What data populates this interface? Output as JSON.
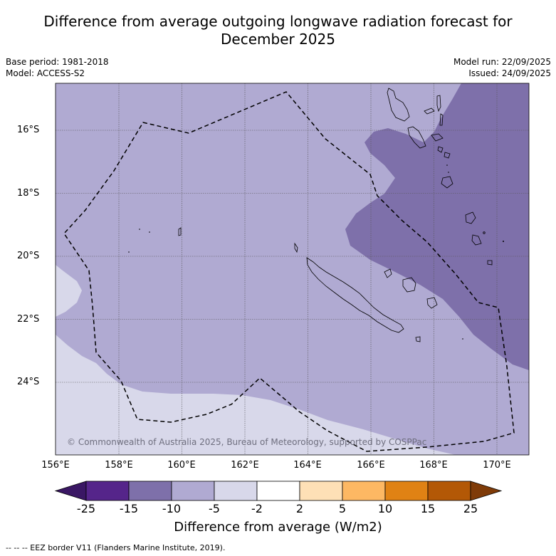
{
  "title": {
    "line1": "Difference from average outgoing longwave radiation forecast for",
    "line2": "December 2025"
  },
  "meta": {
    "base_period": "Base period: 1981-2018",
    "model": "Model: ACCESS-S2",
    "model_run": "Model run: 22/09/2025",
    "issued": "Issued: 24/09/2025"
  },
  "axes": {
    "latitudes": [
      "16°S",
      "18°S",
      "20°S",
      "22°S",
      "24°S"
    ],
    "longitudes": [
      "156°E",
      "158°E",
      "160°E",
      "162°E",
      "164°E",
      "166°E",
      "168°E",
      "170°E"
    ]
  },
  "attribution": "© Commonwealth of Australia 2025, Bureau of Meteorology, supported by COSPPac",
  "colorbar": {
    "ticks": [
      "-25",
      "-15",
      "-10",
      "-5",
      "-2",
      "2",
      "5",
      "10",
      "15",
      "25"
    ],
    "colors": [
      "#3a1764",
      "#55258a",
      "#7e70aa",
      "#b0aad2",
      "#d8d8ea",
      "#ffffff",
      "#fee0b6",
      "#fdb863",
      "#e08214",
      "#b35806",
      "#7f3b08"
    ],
    "title": "Difference from average (W/m2)"
  },
  "legend": {
    "eez": "--  --  -- EEZ border V11 (Flanders Marine Institute, 2019)."
  }
}
